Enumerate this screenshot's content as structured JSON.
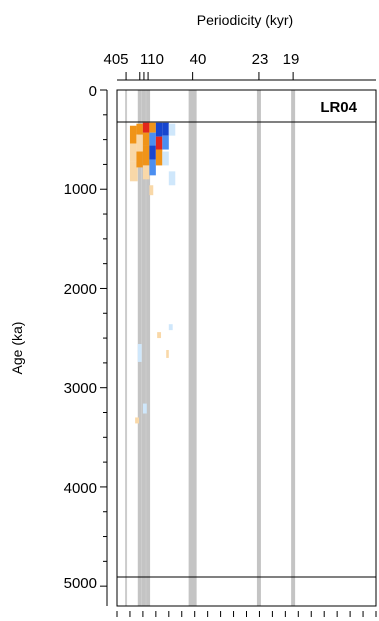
{
  "chart_data": {
    "type": "heatmap",
    "panel_label": "LR04",
    "xlabel": "Periodicity (kyr)",
    "ylabel": "Age (ka)",
    "x_tick_labels": [
      "405",
      "110",
      "40",
      "23",
      "19"
    ],
    "y_ticks": [
      0,
      1000,
      2000,
      3000,
      4000,
      5000
    ],
    "y_tick_labels": [
      "0",
      "1000",
      "2000",
      "3000",
      "4000",
      "5000"
    ],
    "ylim": [
      0,
      5200
    ],
    "y_inverted": true,
    "data_window_ka": [
      330,
      4930
    ],
    "periodicity_bands": [
      {
        "name": "405",
        "x_frac": 0.035
      },
      {
        "name": "110a",
        "x_frac": 0.088
      },
      {
        "name": "110b",
        "x_frac": 0.104
      },
      {
        "name": "110c",
        "x_frac": 0.12
      },
      {
        "name": "40",
        "x_frac": 0.292
      },
      {
        "name": "23",
        "x_frac": 0.548
      },
      {
        "name": "19",
        "x_frac": 0.68
      }
    ],
    "grid": false,
    "colors": {
      "band": "#c4c4c4",
      "thin_line": "#cccccc",
      "positive_strong": "#e2261c",
      "positive": "#f09418",
      "positive_weak": "#f9d8a8",
      "negative_strong": "#1746cf",
      "negative": "#4b8ef0",
      "negative_weak": "#cfe7fb"
    },
    "cells": [
      {
        "x0": 0.05,
        "x1": 0.075,
        "y0": 360,
        "y1": 540,
        "c": "positive"
      },
      {
        "x0": 0.05,
        "x1": 0.075,
        "y0": 540,
        "y1": 720,
        "c": "positive_weak"
      },
      {
        "x0": 0.05,
        "x1": 0.08,
        "y0": 720,
        "y1": 920,
        "c": "positive_weak"
      },
      {
        "x0": 0.075,
        "x1": 0.1,
        "y0": 340,
        "y1": 450,
        "c": "positive"
      },
      {
        "x0": 0.075,
        "x1": 0.1,
        "y0": 450,
        "y1": 620,
        "c": "positive_weak"
      },
      {
        "x0": 0.075,
        "x1": 0.1,
        "y0": 620,
        "y1": 780,
        "c": "positive"
      },
      {
        "x0": 0.1,
        "x1": 0.125,
        "y0": 330,
        "y1": 430,
        "c": "positive_strong"
      },
      {
        "x0": 0.1,
        "x1": 0.125,
        "y0": 430,
        "y1": 560,
        "c": "positive"
      },
      {
        "x0": 0.1,
        "x1": 0.125,
        "y0": 560,
        "y1": 760,
        "c": "positive"
      },
      {
        "x0": 0.1,
        "x1": 0.125,
        "y0": 760,
        "y1": 900,
        "c": "positive_weak"
      },
      {
        "x0": 0.125,
        "x1": 0.15,
        "y0": 330,
        "y1": 430,
        "c": "positive"
      },
      {
        "x0": 0.125,
        "x1": 0.15,
        "y0": 430,
        "y1": 560,
        "c": "negative"
      },
      {
        "x0": 0.125,
        "x1": 0.15,
        "y0": 560,
        "y1": 700,
        "c": "negative_strong"
      },
      {
        "x0": 0.125,
        "x1": 0.15,
        "y0": 700,
        "y1": 860,
        "c": "negative"
      },
      {
        "x0": 0.15,
        "x1": 0.175,
        "y0": 330,
        "y1": 470,
        "c": "negative_strong"
      },
      {
        "x0": 0.15,
        "x1": 0.175,
        "y0": 470,
        "y1": 600,
        "c": "positive_strong"
      },
      {
        "x0": 0.15,
        "x1": 0.175,
        "y0": 600,
        "y1": 760,
        "c": "positive"
      },
      {
        "x0": 0.175,
        "x1": 0.2,
        "y0": 330,
        "y1": 460,
        "c": "negative_strong"
      },
      {
        "x0": 0.175,
        "x1": 0.2,
        "y0": 460,
        "y1": 600,
        "c": "negative"
      },
      {
        "x0": 0.175,
        "x1": 0.2,
        "y0": 620,
        "y1": 760,
        "c": "negative_weak"
      },
      {
        "x0": 0.2,
        "x1": 0.225,
        "y0": 340,
        "y1": 460,
        "c": "negative_weak"
      },
      {
        "x0": 0.2,
        "x1": 0.225,
        "y0": 820,
        "y1": 960,
        "c": "negative_weak"
      },
      {
        "x0": 0.125,
        "x1": 0.14,
        "y0": 960,
        "y1": 1060,
        "c": "positive_weak"
      },
      {
        "x0": 0.08,
        "x1": 0.095,
        "y0": 2560,
        "y1": 2740,
        "c": "negative_weak"
      },
      {
        "x0": 0.155,
        "x1": 0.17,
        "y0": 2440,
        "y1": 2500,
        "c": "positive_weak"
      },
      {
        "x0": 0.2,
        "x1": 0.215,
        "y0": 2360,
        "y1": 2420,
        "c": "negative_weak"
      },
      {
        "x0": 0.19,
        "x1": 0.2,
        "y0": 2620,
        "y1": 2700,
        "c": "positive_weak"
      },
      {
        "x0": 0.1,
        "x1": 0.115,
        "y0": 3160,
        "y1": 3260,
        "c": "negative_weak"
      },
      {
        "x0": 0.07,
        "x1": 0.085,
        "y0": 3300,
        "y1": 3360,
        "c": "positive_weak"
      }
    ]
  }
}
